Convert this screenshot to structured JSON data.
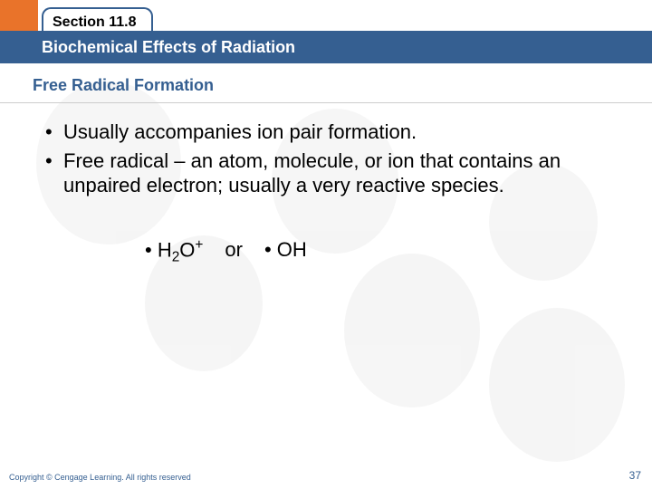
{
  "header": {
    "section_label": "Section 11.8",
    "title": "Biochemical Effects of Radiation",
    "subtitle": "Free Radical Formation"
  },
  "bullets": [
    "Usually accompanies ion pair formation.",
    "Free radical – an atom, molecule, or ion that contains an unpaired electron; usually a very reactive species."
  ],
  "formula": {
    "left_prefix": "• H",
    "left_sub": "2",
    "left_mid": "O",
    "left_sup": "+",
    "connector": "or",
    "right": "• OH"
  },
  "footer": {
    "copyright": "Copyright © Cengage Learning. All rights reserved",
    "page": "37"
  },
  "colors": {
    "accent_orange": "#e9732a",
    "accent_blue": "#355f91",
    "background": "#ffffff"
  },
  "typography": {
    "body_fontsize": 22,
    "header_fontsize": 18,
    "subtitle_fontsize": 18,
    "section_fontsize": 16,
    "copyright_fontsize": 9,
    "pagenum_fontsize": 12
  }
}
